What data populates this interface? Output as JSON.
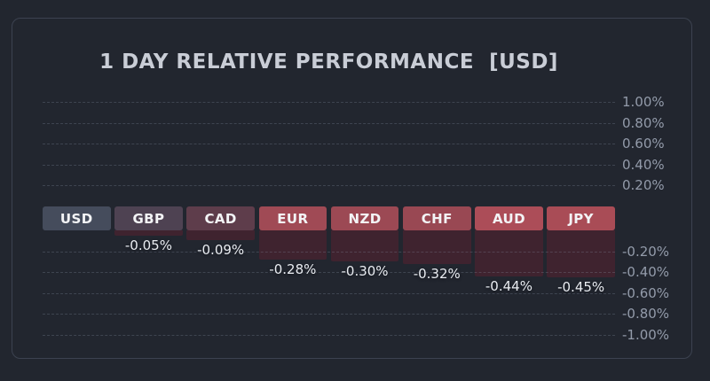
{
  "title": "1 DAY RELATIVE PERFORMANCE  [USD]",
  "chart_data": {
    "type": "bar",
    "title": "1 DAY RELATIVE PERFORMANCE  [USD]",
    "base_currency": "USD",
    "categories": [
      "USD",
      "GBP",
      "CAD",
      "EUR",
      "NZD",
      "CHF",
      "AUD",
      "JPY"
    ],
    "values": [
      0.0,
      -0.05,
      -0.09,
      -0.28,
      -0.3,
      -0.32,
      -0.44,
      -0.45
    ],
    "value_labels": [
      "",
      "-0.05%",
      "-0.09%",
      "-0.28%",
      "-0.30%",
      "-0.32%",
      "-0.44%",
      "-0.45%"
    ],
    "unit": "%",
    "ylim": [
      -1.0,
      1.0
    ],
    "y_tick_step": 0.2,
    "y_ticks_positive": [
      {
        "value": 1.0,
        "label": "1.00%"
      },
      {
        "value": 0.8,
        "label": "0.80%"
      },
      {
        "value": 0.6,
        "label": "0.60%"
      },
      {
        "value": 0.4,
        "label": "0.40%"
      },
      {
        "value": 0.2,
        "label": "0.20%"
      }
    ],
    "y_ticks_negative": [
      {
        "value": -0.2,
        "label": "-0.20%"
      },
      {
        "value": -0.4,
        "label": "-0.40%"
      },
      {
        "value": -0.6,
        "label": "-0.60%"
      },
      {
        "value": -0.8,
        "label": "-0.80%"
      },
      {
        "value": -1.0,
        "label": "-1.00%"
      }
    ],
    "axis_position": "right",
    "grid": "horizontal-dashed",
    "legend": "none"
  },
  "colors": {
    "background": "#22262f",
    "panel_border": "#3c4250",
    "title_text": "#c9cdd6",
    "tick_text": "#939baa",
    "value_text": "#e9ecf1",
    "box_text": "#f3f4f6",
    "bar_fill": "#3f232f",
    "grid_line": "rgba(148,158,178,0.25)",
    "box_fills": [
      "#454c5c",
      "#4e4252",
      "#5e3d4b",
      "#a04a55",
      "#9c4954",
      "#994853",
      "#ac4d58",
      "#a94c56"
    ]
  }
}
